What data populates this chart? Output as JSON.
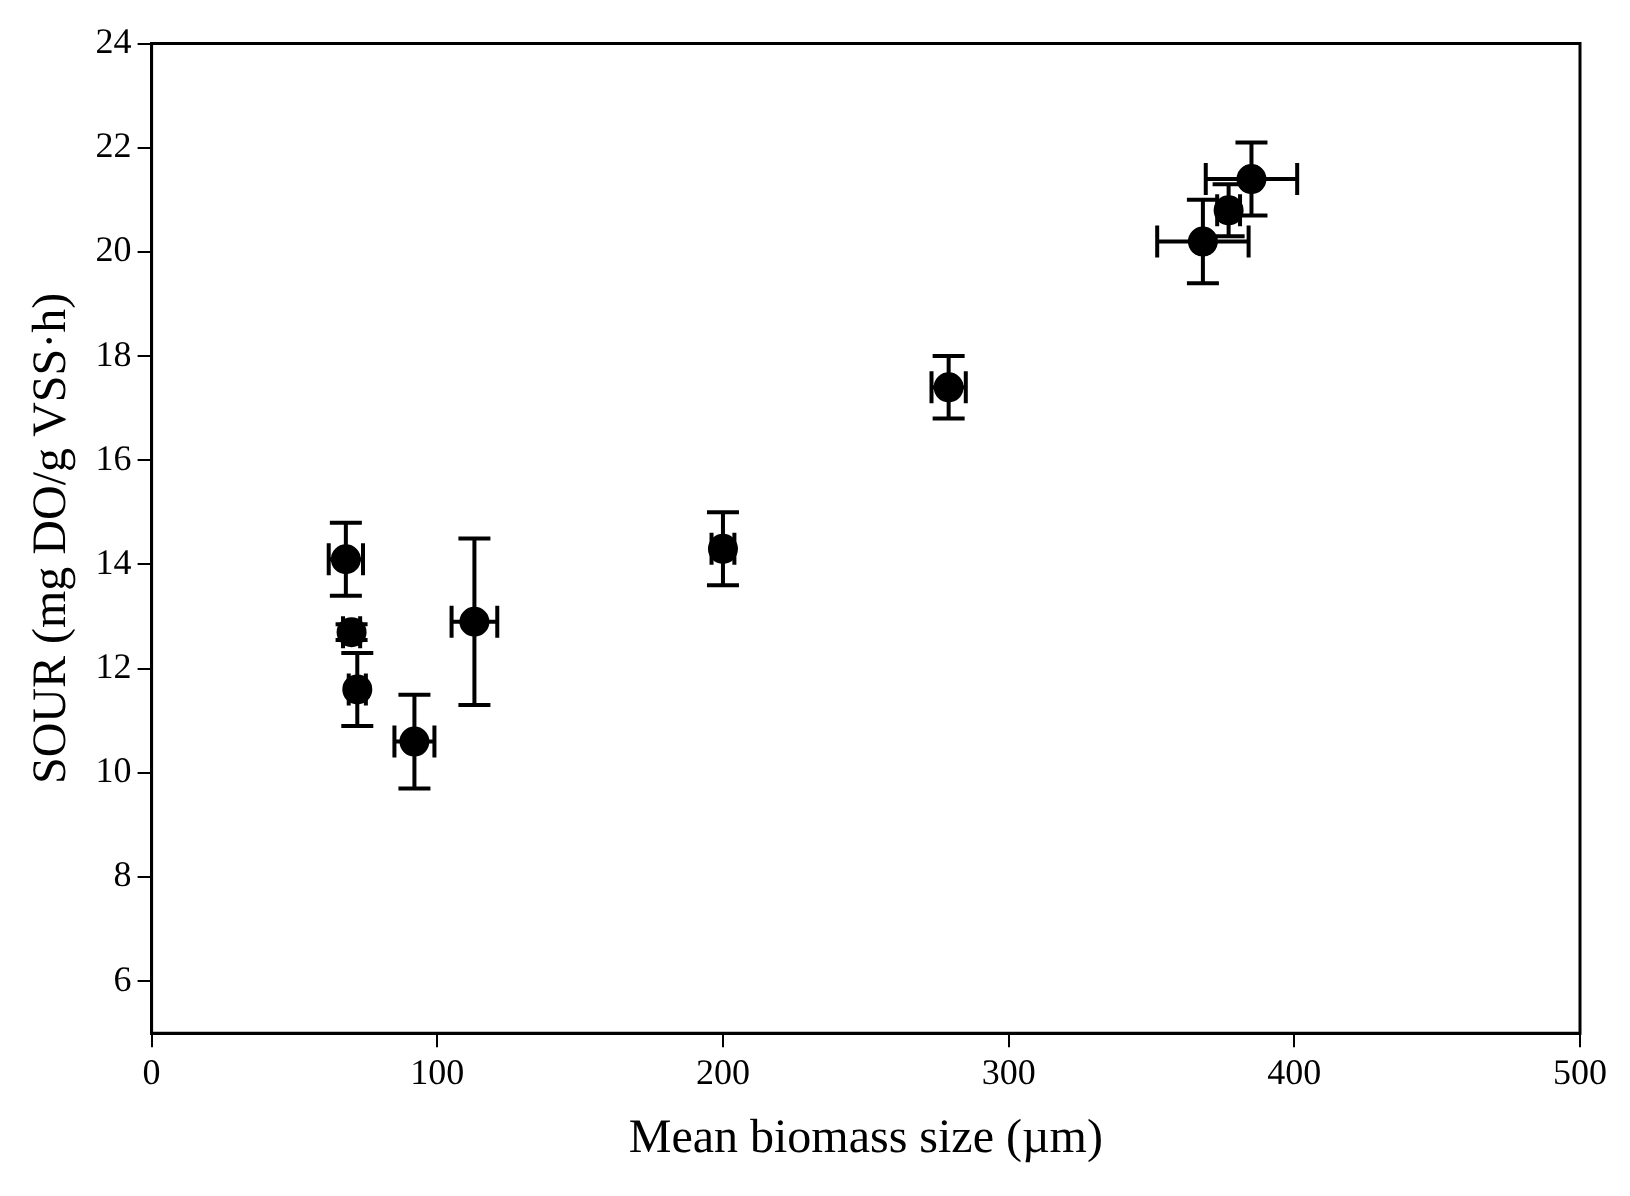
{
  "chart_data": {
    "type": "scatter",
    "xlabel": "Mean biomass size (µm)",
    "ylabel": "SOUR (mg DO/g VSS·h)",
    "x": [
      68,
      70,
      72,
      92,
      113,
      200,
      279,
      368,
      377,
      385
    ],
    "series": [
      {
        "color": "#000000",
        "values": [
          14.1,
          12.7,
          11.6,
          10.6,
          12.9,
          14.3,
          17.4,
          20.2,
          20.8,
          21.4
        ],
        "errors": [
          0.7,
          0.15,
          0.7,
          0.9,
          1.6,
          0.7,
          0.6,
          0.8,
          0.5,
          0.7
        ],
        "xerrors": [
          6,
          3,
          3,
          7,
          8,
          4,
          6,
          16,
          4,
          16
        ]
      }
    ],
    "xlim": [
      0,
      500
    ],
    "xticks": [
      0,
      100,
      200,
      300,
      400,
      500
    ],
    "ylim": [
      5,
      24
    ],
    "yticks": [
      6,
      8,
      10,
      12,
      14,
      16,
      18,
      20,
      22,
      24
    ],
    "marker": "circle",
    "grid": false,
    "legend": false
  }
}
